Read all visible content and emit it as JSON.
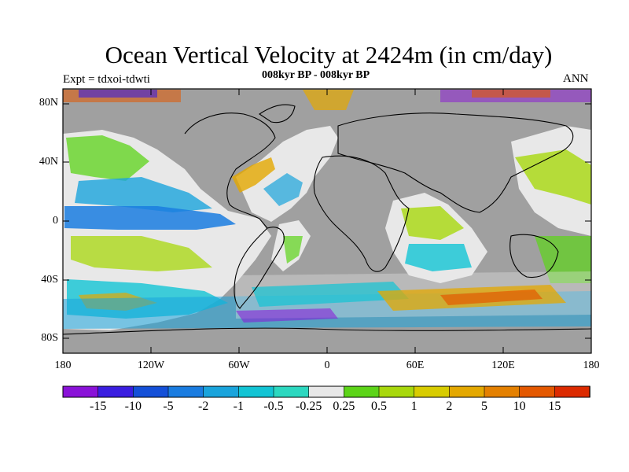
{
  "title": "Ocean Vertical Velocity at 2424m (in cm/day)",
  "experiment_label": "Expt = tdxoi-tdwti",
  "period_label": "008kyr BP - 008kyr BP",
  "season_label": "ANN",
  "lat_ticks": [
    "80N",
    "40N",
    "0",
    "40S",
    "80S"
  ],
  "lon_ticks": [
    "180",
    "120W",
    "60W",
    "0",
    "60E",
    "120E",
    "180"
  ],
  "colorbar": {
    "labels": [
      "-15",
      "-10",
      "-5",
      "-2",
      "-1",
      "-0.5",
      "-0.25",
      "0.25",
      "0.5",
      "1",
      "2",
      "5",
      "10",
      "15"
    ],
    "colors": [
      "#8a12d8",
      "#3a1ee0",
      "#1450d8",
      "#1a7ce0",
      "#1aa4dc",
      "#12c4d4",
      "#2cd8c0",
      "#e8e8e8",
      "#5cd418",
      "#a8d80c",
      "#d8cc00",
      "#e4a800",
      "#e48000",
      "#e45800",
      "#dc2a00"
    ]
  },
  "map": {
    "land_color": "#a0a0a0",
    "projection": "cylindrical-equidistant"
  }
}
